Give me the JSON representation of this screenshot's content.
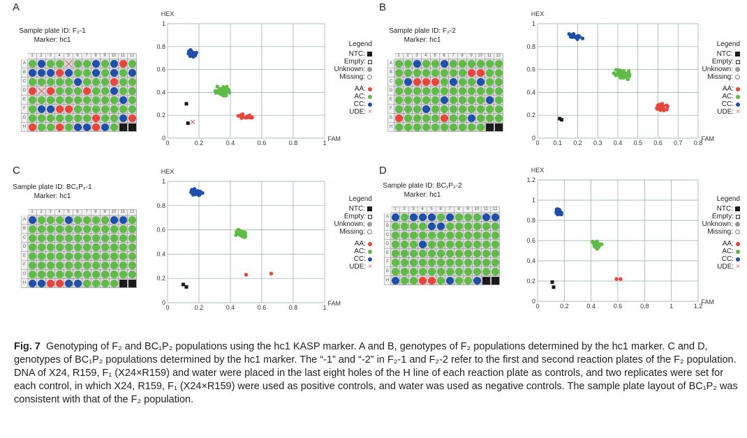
{
  "colors": {
    "AA": "#e8453c",
    "AC": "#5fba47",
    "CC": "#1f4fa8",
    "NTC": "#1a1a1a",
    "UDE": "#e05a5a",
    "grid": "#8fa8a0"
  },
  "legend": {
    "title": "Legend",
    "ntc": "NTC:",
    "empty": "Empty:",
    "unknown": "Unknown:",
    "missing": "Missing:",
    "aa": "AA:",
    "ac": "AC:",
    "cc": "CC:",
    "ude": "UDE:",
    "ude_symbol": "×"
  },
  "plate_columns": [
    "1",
    "2",
    "3",
    "4",
    "5",
    "6",
    "7",
    "8",
    "9",
    "10",
    "11",
    "12"
  ],
  "plate_rows": [
    "A",
    "B",
    "C",
    "D",
    "E",
    "F",
    "G",
    "H"
  ],
  "panels": [
    {
      "letter": "A",
      "plate_id": "Sample plate ID: F₂-1",
      "marker": "Marker: hc1",
      "wells": [
        [
          "AC",
          "CC",
          "AC",
          "AC",
          "UDE",
          "AC",
          "AC",
          "CC",
          "AC",
          "CC",
          "AA",
          "AC"
        ],
        [
          "CC",
          "CC",
          "CC",
          "AA",
          "CC",
          "AC",
          "AC",
          "CC",
          "AC",
          "CC",
          "AC",
          "CC"
        ],
        [
          "AC",
          "AC",
          "AC",
          "AC",
          "AC",
          "CC",
          "AC",
          "AC",
          "AC",
          "AA",
          "AC",
          "AC"
        ],
        [
          "AA",
          "UDE",
          "AA",
          "AC",
          "AC",
          "AC",
          "AA",
          "AC",
          "AC",
          "CC",
          "AC",
          "AC"
        ],
        [
          "AC",
          "AC",
          "AC",
          "AC",
          "AC",
          "AC",
          "AC",
          "AC",
          "AC",
          "AC",
          "CC",
          "AC"
        ],
        [
          "AC",
          "CC",
          "CC",
          "AA",
          "AA",
          "AC",
          "AC",
          "AC",
          "AC",
          "AC",
          "AC",
          "AC"
        ],
        [
          "AC",
          "AC",
          "AC",
          "AC",
          "AC",
          "AC",
          "AC",
          "AA",
          "AC",
          "AC",
          "CC",
          "AA"
        ],
        [
          "AA",
          "AC",
          "AC",
          "AA",
          "AC",
          "CC",
          "CC",
          "AA",
          "CC",
          "AC",
          "NTC",
          "NTC"
        ]
      ]
    },
    {
      "letter": "B",
      "plate_id": "Sample plate ID: F₂-2",
      "marker": "Marker: hc1",
      "wells": [
        [
          "AC",
          "AC",
          "CC",
          "AC",
          "AC",
          "CC",
          "AC",
          "AC",
          "AC",
          "AC",
          "AC",
          "AC"
        ],
        [
          "AC",
          "AC",
          "AC",
          "AC",
          "AC",
          "AC",
          "AC",
          "AC",
          "AA",
          "AA",
          "AC",
          "AC"
        ],
        [
          "AC",
          "CC",
          "AA",
          "AA",
          "AA",
          "AC",
          "CC",
          "AC",
          "AC",
          "CC",
          "AC",
          "AC"
        ],
        [
          "AC",
          "AC",
          "AC",
          "AC",
          "AC",
          "AC",
          "AC",
          "AC",
          "AC",
          "AC",
          "AC",
          "AC"
        ],
        [
          "AC",
          "AC",
          "AC",
          "AC",
          "AC",
          "CC",
          "AC",
          "AC",
          "AC",
          "AC",
          "CC",
          "AC"
        ],
        [
          "AC",
          "AC",
          "AC",
          "CC",
          "AC",
          "AC",
          "AC",
          "AC",
          "AC",
          "AC",
          "AC",
          "AC"
        ],
        [
          "AA",
          "AC",
          "AC",
          "AC",
          "AC",
          "AA",
          "AC",
          "AC",
          "CC",
          "AC",
          "AC",
          "AC"
        ],
        [
          "AC",
          "AC",
          "AC",
          "AC",
          "AC",
          "AC",
          "AC",
          "AC",
          "AC",
          "AC",
          "NTC",
          "NTC"
        ]
      ]
    },
    {
      "letter": "C",
      "plate_id": "Sample plate ID: BC₁P₂-1",
      "marker": "Marker: hc1",
      "wells": [
        [
          "CC",
          "AC",
          "AC",
          "AC",
          "CC",
          "AC",
          "AC",
          "AC",
          "AC",
          "CC",
          "CC",
          "AC"
        ],
        [
          "AC",
          "AC",
          "AC",
          "AC",
          "AC",
          "AC",
          "AC",
          "AC",
          "AC",
          "AC",
          "AC",
          "AC"
        ],
        [
          "AC",
          "AC",
          "AC",
          "AC",
          "AC",
          "AC",
          "AC",
          "AC",
          "AC",
          "AC",
          "AC",
          "AC"
        ],
        [
          "AC",
          "AC",
          "AC",
          "AC",
          "AC",
          "AC",
          "AC",
          "AC",
          "AC",
          "AC",
          "AC",
          "AC"
        ],
        [
          "AC",
          "AC",
          "AC",
          "AC",
          "AC",
          "AC",
          "AC",
          "AC",
          "AC",
          "AC",
          "AC",
          "AC"
        ],
        [
          "AC",
          "AC",
          "AC",
          "AC",
          "AC",
          "AC",
          "AC",
          "AC",
          "AC",
          "AC",
          "AC",
          "AC"
        ],
        [
          "AC",
          "AC",
          "AC",
          "AC",
          "AC",
          "AC",
          "AC",
          "AC",
          "AC",
          "AC",
          "AC",
          "AC"
        ],
        [
          "CC",
          "CC",
          "AA",
          "AA",
          "CC",
          "CC",
          "AC",
          "AC",
          "AC",
          "AC",
          "NTC",
          "NTC"
        ]
      ]
    },
    {
      "letter": "D",
      "plate_id": "Sample plate ID: BC₁P₂-2",
      "marker": "Marker: hc1",
      "wells": [
        [
          "CC",
          "AC",
          "CC",
          "CC",
          "CC",
          "AC",
          "CC",
          "AC",
          "AC",
          "AC",
          "CC",
          "CC"
        ],
        [
          "AC",
          "AC",
          "AC",
          "AC",
          "CC",
          "CC",
          "AC",
          "AC",
          "AC",
          "AC",
          "AC",
          "AC"
        ],
        [
          "AC",
          "AC",
          "AC",
          "AC",
          "AC",
          "AC",
          "AC",
          "AC",
          "AC",
          "AC",
          "AC",
          "AC"
        ],
        [
          "AC",
          "AC",
          "AC",
          "CC",
          "AC",
          "AC",
          "AC",
          "AC",
          "AC",
          "AC",
          "AC",
          "AC"
        ],
        [
          "AC",
          "AC",
          "AC",
          "AC",
          "AC",
          "AC",
          "AC",
          "AC",
          "AC",
          "AC",
          "AC",
          "AC"
        ],
        [
          "AC",
          "AC",
          "AC",
          "AC",
          "AC",
          "AC",
          "AC",
          "AC",
          "AC",
          "AC",
          "AC",
          "AC"
        ],
        [
          "AC",
          "AC",
          "AC",
          "AC",
          "AC",
          "AC",
          "AC",
          "AC",
          "AC",
          "AC",
          "AC",
          "AC"
        ],
        [
          "CC",
          "AC",
          "AC",
          "AA",
          "AA",
          "AC",
          "CC",
          "AC",
          "AC",
          "CC",
          "NTC",
          "NTC"
        ]
      ]
    }
  ],
  "chart_data": [
    {
      "type": "scatter",
      "panel": "A",
      "xlabel": "FAM",
      "ylabel": "HEX",
      "xlim": [
        0,
        1
      ],
      "ylim": [
        0,
        1
      ],
      "xticks": [
        "0",
        "0.2",
        "0.4",
        "0.6",
        "0.8",
        "1"
      ],
      "yticks": [
        "0",
        "0.2",
        "0.4",
        "0.6",
        "0.8",
        "1"
      ],
      "series": [
        {
          "name": "CC",
          "center": [
            0.16,
            0.74
          ],
          "spread": [
            0.025,
            0.025
          ],
          "n": 24
        },
        {
          "name": "AC",
          "center": [
            0.36,
            0.41
          ],
          "spread": [
            0.045,
            0.035
          ],
          "n": 48
        },
        {
          "name": "AA",
          "center": [
            0.5,
            0.19
          ],
          "spread": [
            0.035,
            0.015
          ],
          "n": 16
        },
        {
          "name": "NTC",
          "points": [
            [
              0.12,
              0.3
            ],
            [
              0.13,
              0.13
            ]
          ]
        },
        {
          "name": "UDE",
          "points": [
            [
              0.16,
              0.14
            ]
          ]
        }
      ]
    },
    {
      "type": "scatter",
      "panel": "B",
      "xlabel": "FAM",
      "ylabel": "HEX",
      "xlim": [
        0,
        0.8
      ],
      "ylim": [
        0,
        1
      ],
      "xticks": [
        "0",
        "0.1",
        "0.2",
        "0.3",
        "0.4",
        "0.5",
        "0.6",
        "0.7",
        "0.8"
      ],
      "yticks": [
        "0",
        "0.2",
        "0.4",
        "0.6",
        "0.8",
        "1"
      ],
      "series": [
        {
          "name": "CC",
          "center": [
            0.19,
            0.89
          ],
          "spread": [
            0.04,
            0.02
          ],
          "n": 22
        },
        {
          "name": "AC",
          "center": [
            0.42,
            0.56
          ],
          "spread": [
            0.04,
            0.04
          ],
          "n": 48
        },
        {
          "name": "AA",
          "center": [
            0.61,
            0.27
          ],
          "spread": [
            0.035,
            0.025
          ],
          "n": 22
        },
        {
          "name": "NTC",
          "points": [
            [
              0.11,
              0.17
            ],
            [
              0.12,
              0.16
            ]
          ]
        }
      ]
    },
    {
      "type": "scatter",
      "panel": "C",
      "xlabel": "FAM",
      "ylabel": "HEX",
      "xlim": [
        0,
        1
      ],
      "ylim": [
        0,
        1
      ],
      "xticks": [
        "0",
        "0.2",
        "0.4",
        "0.6",
        "0.8",
        "1"
      ],
      "yticks": [
        "0",
        "0.2",
        "0.4",
        "0.6",
        "0.8",
        "1"
      ],
      "series": [
        {
          "name": "CC",
          "center": [
            0.18,
            0.91
          ],
          "spread": [
            0.03,
            0.025
          ],
          "n": 38
        },
        {
          "name": "AC",
          "center": [
            0.47,
            0.57
          ],
          "spread": [
            0.03,
            0.025
          ],
          "n": 48
        },
        {
          "name": "AA",
          "points": [
            [
              0.5,
              0.23
            ],
            [
              0.66,
              0.24
            ]
          ]
        },
        {
          "name": "NTC",
          "points": [
            [
              0.1,
              0.15
            ],
            [
              0.12,
              0.13
            ]
          ]
        }
      ]
    },
    {
      "type": "scatter",
      "panel": "D",
      "xlabel": "FAM",
      "ylabel": "HEX",
      "xlim": [
        0,
        1.2
      ],
      "ylim": [
        0,
        1.2
      ],
      "xticks": [
        "0",
        "0.2",
        "0.4",
        "0.6",
        "0.8",
        "1",
        "1.2"
      ],
      "yticks": [
        "0",
        "0.2",
        "0.4",
        "0.6",
        "0.8",
        "1",
        "1.2"
      ],
      "series": [
        {
          "name": "CC",
          "center": [
            0.16,
            0.88
          ],
          "spread": [
            0.02,
            0.025
          ],
          "n": 34
        },
        {
          "name": "AC",
          "center": [
            0.44,
            0.56
          ],
          "spread": [
            0.03,
            0.03
          ],
          "n": 40
        },
        {
          "name": "AA",
          "points": [
            [
              0.59,
              0.22
            ],
            [
              0.62,
              0.22
            ]
          ]
        },
        {
          "name": "NTC",
          "points": [
            [
              0.11,
              0.19
            ],
            [
              0.12,
              0.14
            ]
          ]
        }
      ]
    }
  ],
  "caption": {
    "label": "Fig. 7",
    "text": "Genotyping of F₂ and BC₁P₂ populations using the hc1 KASP marker. A and B, genotypes of F₂ populations determined by the hc1 marker. C and D, genotypes of BC₁P₂ populations determined by the hc1 marker. The “-1” and “-2” in F₂-1 and F₂-2 refer to the first and second reaction plates of the F₂ population. DNA of X24, R159, F₁ (X24×R159) and water were placed in the last eight holes of the H line of each reaction plate as controls, and two replicates were set for each control, in which X24, R159, F₁ (X24×R159) were used as positive controls, and water was used as negative controls. The sample plate layout of BC₁P₂ was consistent with that of the F₂ population."
  }
}
